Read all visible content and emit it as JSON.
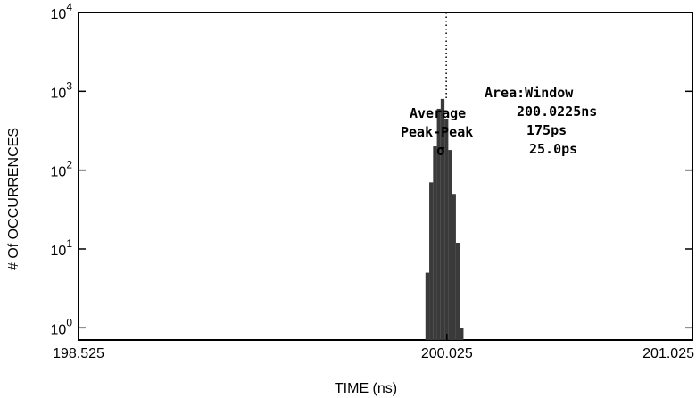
{
  "chart_data": {
    "type": "bar",
    "title": "",
    "xlabel": "TIME (ns)",
    "ylabel": "# Of OCCURRENCES",
    "x_ticks": [
      "198.525",
      "200.025",
      "201.025"
    ],
    "x_tick_values": [
      198.525,
      200.025,
      201.025
    ],
    "xlim": [
      198.525,
      201.025
    ],
    "y_scale": "log",
    "ylim": [
      0.7,
      10000
    ],
    "y_ticks": [
      {
        "base": "10",
        "exp": "0",
        "value": 1
      },
      {
        "base": "10",
        "exp": "1",
        "value": 10
      },
      {
        "base": "10",
        "exp": "2",
        "value": 100
      },
      {
        "base": "10",
        "exp": "3",
        "value": 1000
      },
      {
        "base": "10",
        "exp": "4",
        "value": 10000
      }
    ],
    "bin_width_ns": 0.0155,
    "bins": [
      {
        "x": 199.9455,
        "y": 5
      },
      {
        "x": 199.961,
        "y": 70
      },
      {
        "x": 199.9765,
        "y": 200
      },
      {
        "x": 199.992,
        "y": 600
      },
      {
        "x": 200.0075,
        "y": 800
      },
      {
        "x": 200.023,
        "y": 450
      },
      {
        "x": 200.0385,
        "y": 180
      },
      {
        "x": 200.054,
        "y": 50
      },
      {
        "x": 200.0695,
        "y": 12
      },
      {
        "x": 200.085,
        "y": 1
      }
    ],
    "marker_x": 200.0225,
    "grid": false,
    "bar_color": "#3a3a3a"
  },
  "stats": {
    "area_label": "Area:Window",
    "average_label": "Average",
    "average_value": "200.0225ns",
    "peak_label": "Peak-Peak",
    "peak_value": "175ps",
    "sigma_label": "σ",
    "sigma_value": "25.0ps"
  }
}
